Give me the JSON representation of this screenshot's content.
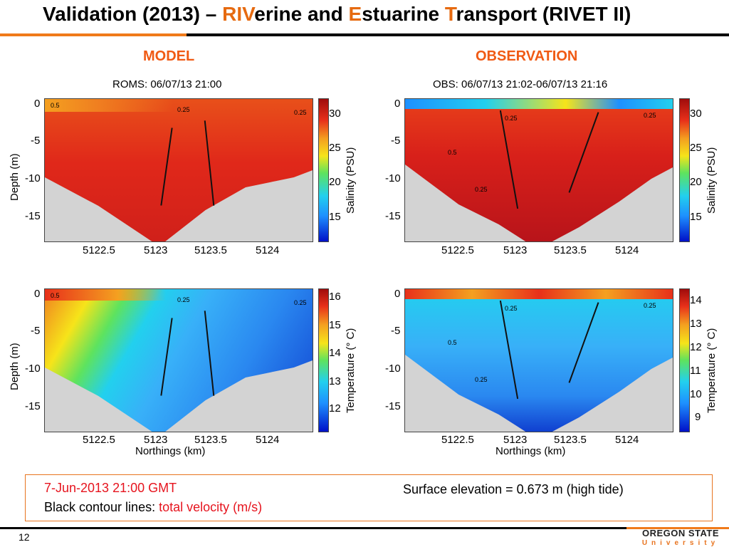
{
  "title": {
    "p1": "Validation (2013) – ",
    "a1": "RIV",
    "p2": "erine and ",
    "a2": "E",
    "p3": "stuarine ",
    "a3": "T",
    "p4": "ransport (RIVET II)"
  },
  "columns": {
    "model": "MODEL",
    "observation": "OBSERVATION"
  },
  "panels": {
    "model_title": "ROMS: 06/07/13 21:00",
    "obs_title": "OBS: 06/07/13 21:02-06/07/13 21:16",
    "ylabel": "Depth (m)",
    "xlabel": "Northings (km)",
    "yticks": [
      "0",
      "-5",
      "-10",
      "-15"
    ],
    "xticks": [
      "5122.5",
      "5123",
      "5123.5",
      "5124"
    ],
    "contours": {
      "a": "0.5",
      "b": "0.25"
    }
  },
  "colorbars": {
    "salinity": {
      "label": "Salinity (PSU)",
      "ticks": [
        "30",
        "25",
        "20",
        "15"
      ]
    },
    "temp_model": {
      "label": "Temperature (° C)",
      "ticks": [
        "16",
        "15",
        "14",
        "13",
        "12"
      ]
    },
    "temp_obs": {
      "label": "Temperature (° C)",
      "ticks": [
        "14",
        "13",
        "12",
        "11",
        "10",
        "9"
      ]
    }
  },
  "info": {
    "date": "7-Jun-2013 21:00 GMT",
    "contour_prefix": "Black contour lines: ",
    "contour_quantity": "total velocity (m/s)",
    "surface": "Surface elevation  = 0.673 m (high tide)"
  },
  "footer": {
    "page": "12",
    "logo_top": "OREGON STATE",
    "logo_bottom": "University"
  },
  "colors": {
    "accent": "#f05a14",
    "title_accent": "#e66a10",
    "highlight": "#e6141e",
    "frame": "#e8741f"
  }
}
